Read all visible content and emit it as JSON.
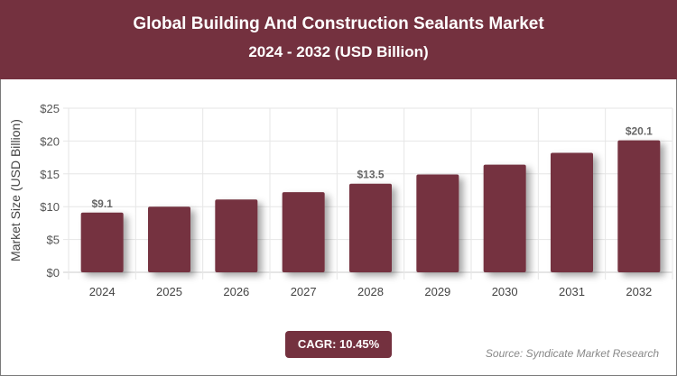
{
  "header": {
    "title": "Global Building And Construction Sealants Market",
    "subtitle": "2024 - 2032 (USD Billion)"
  },
  "cagr": "CAGR: 10.45%",
  "source": "Source: Syndicate Market Research",
  "chart_data": {
    "type": "bar",
    "title": "Global Building And Construction Sealants Market",
    "subtitle": "2024 - 2032 (USD Billion)",
    "ylabel": "Market Size (USD Billion)",
    "xlabel": "",
    "categories": [
      "2024",
      "2025",
      "2026",
      "2027",
      "2028",
      "2029",
      "2030",
      "2031",
      "2032"
    ],
    "values": [
      9.1,
      10.0,
      11.1,
      12.2,
      13.5,
      14.9,
      16.4,
      18.2,
      20.1
    ],
    "data_labels": {
      "0": "$9.1",
      "4": "$13.5",
      "8": "$20.1"
    },
    "yticks": [
      "$0",
      "$5",
      "$10",
      "$15",
      "$20",
      "$25"
    ],
    "ylim": [
      0,
      25
    ],
    "grid": true,
    "bar_color": "#74313f"
  }
}
